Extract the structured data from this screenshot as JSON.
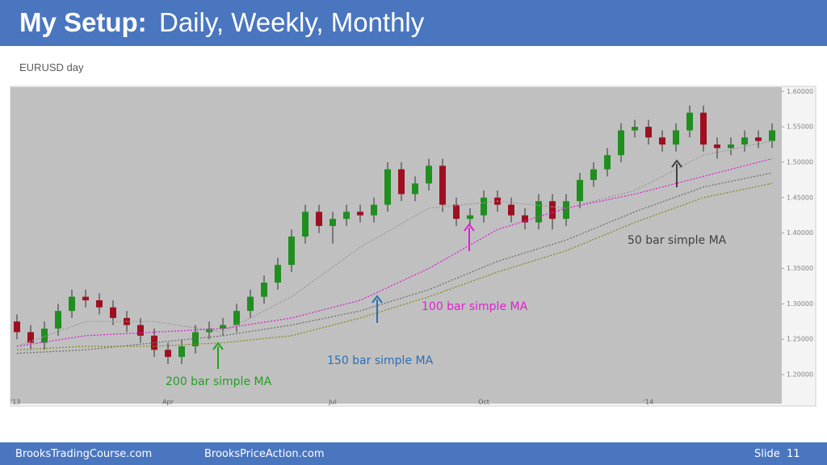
{
  "header": {
    "title_bold": "My Setup:",
    "title": "Daily, Weekly, Monthly"
  },
  "subtitle": "EURUSD day",
  "footer": {
    "left": "BrooksTradingCourse.com",
    "center": "BrooksPriceAction.com",
    "slide": "Slide  11"
  },
  "chart_data": {
    "type": "candlestick",
    "categories": [
      "'13",
      null,
      null,
      null,
      null,
      null,
      null,
      null,
      null,
      null,
      null,
      "Apr",
      null,
      null,
      null,
      null,
      null,
      null,
      null,
      null,
      null,
      null,
      null,
      "Jul",
      null,
      null,
      null,
      null,
      null,
      null,
      null,
      null,
      null,
      null,
      "Oct",
      null,
      null,
      null,
      null,
      null,
      null,
      null,
      null,
      null,
      null,
      null,
      "'14",
      null,
      null,
      null,
      null,
      null,
      null,
      null,
      null,
      null
    ],
    "open": [
      1.275,
      1.26,
      1.245,
      1.265,
      1.29,
      1.31,
      1.305,
      1.295,
      1.28,
      1.27,
      1.255,
      1.235,
      1.225,
      1.24,
      1.26,
      1.265,
      1.27,
      1.29,
      1.31,
      1.33,
      1.355,
      1.395,
      1.43,
      1.41,
      1.42,
      1.43,
      1.425,
      1.44,
      1.49,
      1.455,
      1.47,
      1.495,
      1.44,
      1.42,
      1.425,
      1.45,
      1.44,
      1.425,
      1.415,
      1.445,
      1.42,
      1.445,
      1.475,
      1.49,
      1.51,
      1.545,
      1.55,
      1.535,
      1.525,
      1.545,
      1.57,
      1.525,
      1.52,
      1.525,
      1.535,
      1.53
    ],
    "high": [
      1.285,
      1.27,
      1.275,
      1.3,
      1.32,
      1.32,
      1.315,
      1.305,
      1.29,
      1.28,
      1.265,
      1.245,
      1.25,
      1.27,
      1.275,
      1.28,
      1.3,
      1.32,
      1.34,
      1.365,
      1.405,
      1.44,
      1.44,
      1.43,
      1.44,
      1.44,
      1.45,
      1.5,
      1.5,
      1.48,
      1.505,
      1.505,
      1.45,
      1.435,
      1.46,
      1.46,
      1.45,
      1.435,
      1.455,
      1.455,
      1.455,
      1.485,
      1.5,
      1.52,
      1.555,
      1.56,
      1.56,
      1.545,
      1.555,
      1.58,
      1.58,
      1.535,
      1.535,
      1.545,
      1.545,
      1.555
    ],
    "low": [
      1.25,
      1.235,
      1.235,
      1.255,
      1.28,
      1.295,
      1.285,
      1.27,
      1.26,
      1.245,
      1.225,
      1.215,
      1.215,
      1.23,
      1.25,
      1.255,
      1.26,
      1.28,
      1.3,
      1.32,
      1.345,
      1.385,
      1.4,
      1.385,
      1.41,
      1.415,
      1.415,
      1.43,
      1.445,
      1.445,
      1.46,
      1.43,
      1.41,
      1.41,
      1.415,
      1.43,
      1.415,
      1.405,
      1.405,
      1.405,
      1.41,
      1.435,
      1.465,
      1.48,
      1.5,
      1.535,
      1.525,
      1.515,
      1.515,
      1.535,
      1.515,
      1.505,
      1.51,
      1.515,
      1.52,
      1.52
    ],
    "close": [
      1.26,
      1.245,
      1.265,
      1.29,
      1.31,
      1.305,
      1.295,
      1.28,
      1.27,
      1.255,
      1.235,
      1.225,
      1.24,
      1.26,
      1.265,
      1.27,
      1.29,
      1.31,
      1.33,
      1.355,
      1.395,
      1.43,
      1.41,
      1.42,
      1.43,
      1.425,
      1.44,
      1.49,
      1.455,
      1.47,
      1.495,
      1.44,
      1.42,
      1.425,
      1.45,
      1.44,
      1.425,
      1.415,
      1.445,
      1.42,
      1.445,
      1.475,
      1.49,
      1.51,
      1.545,
      1.55,
      1.535,
      1.525,
      1.545,
      1.57,
      1.525,
      1.52,
      1.525,
      1.535,
      1.53,
      1.545
    ],
    "up_color": "#1f8f1f",
    "down_color": "#9e1020",
    "series": [
      {
        "name": "50 bar simple MA",
        "color": "#9a9a9a",
        "label_color": "#404040",
        "x": [
          0,
          5,
          10,
          15,
          20,
          25,
          30,
          35,
          40,
          45,
          50,
          55
        ],
        "values": [
          1.24,
          1.275,
          1.275,
          1.26,
          1.31,
          1.38,
          1.435,
          1.445,
          1.435,
          1.46,
          1.51,
          1.53
        ]
      },
      {
        "name": "100 bar simple MA",
        "color": "#e020d0",
        "label_color": "#e020d0",
        "x": [
          0,
          5,
          10,
          15,
          20,
          25,
          30,
          35,
          40,
          45,
          50,
          55
        ],
        "values": [
          1.24,
          1.255,
          1.26,
          1.265,
          1.28,
          1.305,
          1.35,
          1.405,
          1.435,
          1.455,
          1.48,
          1.505
        ]
      },
      {
        "name": "150 bar simple MA",
        "color": "#707070",
        "label_color": "#2a6fb5",
        "x": [
          0,
          5,
          10,
          15,
          20,
          25,
          30,
          35,
          40,
          45,
          50,
          55
        ],
        "values": [
          1.23,
          1.235,
          1.245,
          1.255,
          1.27,
          1.29,
          1.32,
          1.36,
          1.39,
          1.43,
          1.465,
          1.485
        ]
      },
      {
        "name": "200 bar simple MA",
        "color": "#8a8a20",
        "label_color": "#22a022",
        "x": [
          0,
          5,
          10,
          15,
          20,
          25,
          30,
          35,
          40,
          45,
          50,
          55
        ],
        "values": [
          1.235,
          1.24,
          1.24,
          1.245,
          1.255,
          1.28,
          1.31,
          1.345,
          1.375,
          1.415,
          1.45,
          1.47
        ]
      }
    ],
    "ylim": [
      1.159,
      1.606
    ],
    "yticks": [
      {
        "value": 1.2,
        "label": "1.20000"
      },
      {
        "value": 1.25,
        "label": "1.25000"
      },
      {
        "value": 1.3,
        "label": "1.30000"
      },
      {
        "value": 1.35,
        "label": "1.35000"
      },
      {
        "value": 1.4,
        "label": "1.40000"
      },
      {
        "value": 1.45,
        "label": "1.45000"
      },
      {
        "value": 1.5,
        "label": "1.50000"
      },
      {
        "value": 1.55,
        "label": "1.55000"
      },
      {
        "value": 1.6,
        "label": "1.60000"
      }
    ],
    "grid": false
  }
}
